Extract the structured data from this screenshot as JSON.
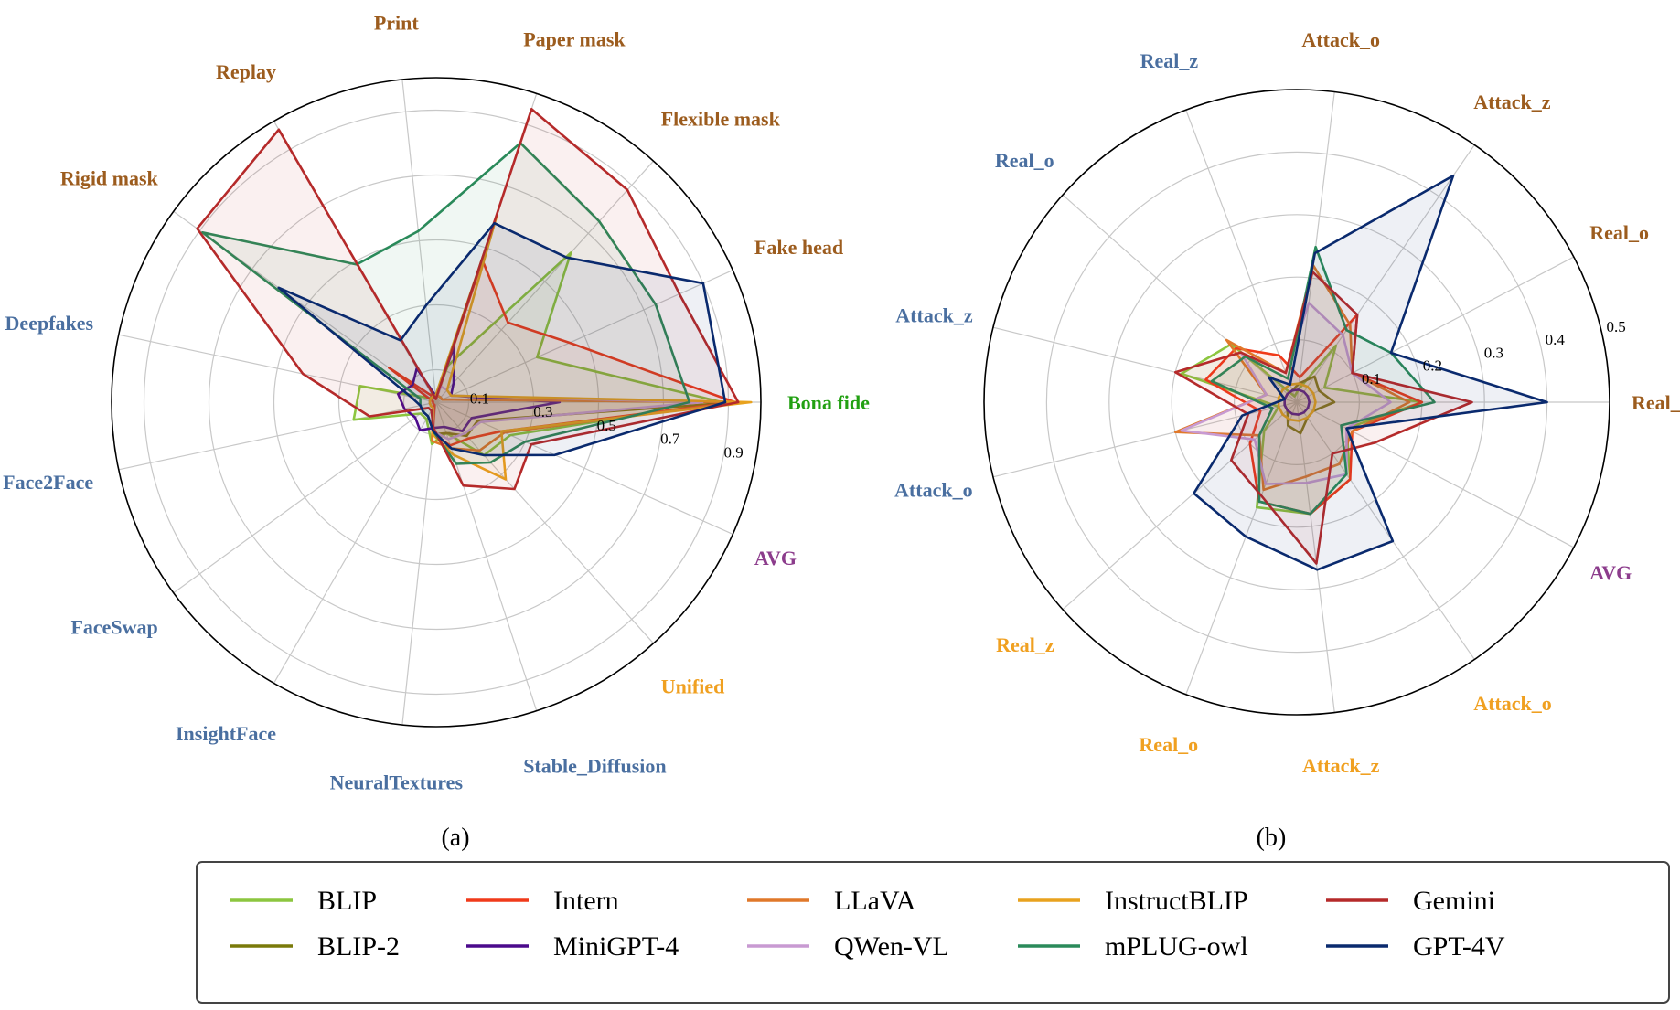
{
  "colors": {
    "BLIP": "#8cc63f",
    "BLIP-2": "#7a7a0a",
    "Intern": "#f03a1a",
    "MiniGPT-4": "#4b0a8c",
    "LLaVA": "#e0782a",
    "QWen-VL": "#c89ad2",
    "InstructBLIP": "#e8a21e",
    "mPLUG-owl": "#2a8a5a",
    "Gemini": "#b52a2a",
    "GPT-4V": "#0a2a6e",
    "label_brown": "#9c5c1e",
    "label_blue": "#4a6fa0",
    "label_green": "#22a012",
    "label_orange": "#f0a020",
    "label_purple": "#8c3c8c"
  },
  "legend": {
    "col1": [
      "BLIP",
      "BLIP-2"
    ],
    "col2": [
      "Intern",
      "MiniGPT-4"
    ],
    "col3": [
      "LLaVA",
      "QWen-VL"
    ],
    "col4": [
      "InstructBLIP",
      "mPLUG-owl"
    ],
    "col5": [
      "Gemini",
      "GPT-4V"
    ]
  },
  "chart_data": [
    {
      "type": "radar",
      "caption": "(a)",
      "rmax": 1.0,
      "start_angle_deg": 0,
      "ticks": [
        0.1,
        0.3,
        0.5,
        0.7,
        0.9
      ],
      "tick_labels": [
        "0.1",
        "0.3",
        "0.5",
        "0.7",
        "0.9"
      ],
      "axes": [
        {
          "label": "Bona fide",
          "color": "label_green"
        },
        {
          "label": "Fake head",
          "color": "label_brown"
        },
        {
          "label": "Flexible mask",
          "color": "label_brown"
        },
        {
          "label": "Paper mask",
          "color": "label_brown"
        },
        {
          "label": "Print",
          "color": "label_brown"
        },
        {
          "label": "Replay",
          "color": "label_brown"
        },
        {
          "label": "Rigid mask",
          "color": "label_brown"
        },
        {
          "label": "Deepfakes",
          "color": "label_blue"
        },
        {
          "label": "Face2Face",
          "color": "label_blue"
        },
        {
          "label": "FaceSwap",
          "color": "label_blue"
        },
        {
          "label": "InsightFace",
          "color": "label_blue"
        },
        {
          "label": "NeuralTextures",
          "color": "label_blue"
        },
        {
          "label": "Stable_Diffusion",
          "color": "label_blue"
        },
        {
          "label": "Unified",
          "color": "label_orange"
        },
        {
          "label": "AVG",
          "color": "label_purple"
        }
      ],
      "series": [
        {
          "name": "BLIP",
          "values": [
            0.88,
            0.34,
            0.62,
            0.12,
            0.02,
            0.03,
            0.02,
            0.24,
            0.26,
            0.06,
            0.06,
            0.13,
            0.1,
            0.22,
            0.25
          ]
        },
        {
          "name": "BLIP-2",
          "values": [
            0.93,
            0.02,
            0.02,
            0.02,
            0.02,
            0.02,
            0.02,
            0.02,
            0.02,
            0.02,
            0.02,
            0.1,
            0.1,
            0.14,
            0.14
          ]
        },
        {
          "name": "Intern",
          "values": [
            0.92,
            0.45,
            0.33,
            0.46,
            0.01,
            0.02,
            0.18,
            0.01,
            0.01,
            0.01,
            0.01,
            0.1,
            0.14,
            0.15,
            0.22
          ]
        },
        {
          "name": "MiniGPT-4",
          "values": [
            0.38,
            0.05,
            0.08,
            0.18,
            0.02,
            0.12,
            0.09,
            0.12,
            0.1,
            0.08,
            0.1,
            0.08,
            0.08,
            0.12,
            0.12
          ]
        },
        {
          "name": "LLaVA",
          "values": [
            0.93,
            0.02,
            0.02,
            0.02,
            0.02,
            0.02,
            0.02,
            0.02,
            0.02,
            0.02,
            0.02,
            0.12,
            0.15,
            0.2,
            0.23
          ]
        },
        {
          "name": "QWen-VL",
          "values": [
            0.82,
            0.05,
            0.05,
            0.05,
            0.02,
            0.02,
            0.02,
            0.02,
            0.02,
            0.02,
            0.02,
            0.09,
            0.12,
            0.13,
            0.15
          ]
        },
        {
          "name": "InstructBLIP",
          "values": [
            0.97,
            0.05,
            0.05,
            0.6,
            0.02,
            0.02,
            0.02,
            0.02,
            0.02,
            0.02,
            0.02,
            0.1,
            0.17,
            0.32,
            0.22
          ]
        },
        {
          "name": "mPLUG-owl",
          "values": [
            0.78,
            0.74,
            0.75,
            0.84,
            0.53,
            0.49,
            0.89,
            0.05,
            0.05,
            0.05,
            0.05,
            0.09,
            0.2,
            0.25,
            0.3
          ]
        },
        {
          "name": "Gemini",
          "values": [
            0.93,
            0.82,
            0.88,
            0.95,
            0.01,
            0.97,
            0.91,
            0.42,
            0.21,
            0.03,
            0.03,
            0.08,
            0.27,
            0.36,
            0.32
          ]
        },
        {
          "name": "GPT-4V",
          "values": [
            0.89,
            0.9,
            0.6,
            0.58,
            0.3,
            0.22,
            0.6,
            0.08,
            0.05,
            0.05,
            0.05,
            0.09,
            0.15,
            0.22,
            0.4
          ]
        }
      ]
    },
    {
      "type": "radar",
      "caption": "(b)",
      "rmax": 0.5,
      "start_angle_deg": 0,
      "ticks": [
        0.1,
        0.2,
        0.3,
        0.4,
        0.5
      ],
      "tick_labels": [
        "0.1",
        "0.2",
        "0.3",
        "0.4",
        "0.5"
      ],
      "axes": [
        {
          "label": "Real_z",
          "color": "label_brown"
        },
        {
          "label": "Real_o",
          "color": "label_brown"
        },
        {
          "label": "Attack_z",
          "color": "label_brown"
        },
        {
          "label": "Attack_o",
          "color": "label_brown"
        },
        {
          "label": "Real_z",
          "color": "label_blue"
        },
        {
          "label": "Real_o",
          "color": "label_blue"
        },
        {
          "label": "Attack_z",
          "color": "label_blue"
        },
        {
          "label": "Attack_o",
          "color": "label_blue"
        },
        {
          "label": "Real_z",
          "color": "label_orange"
        },
        {
          "label": "Real_o",
          "color": "label_orange"
        },
        {
          "label": "Attack_z",
          "color": "label_orange"
        },
        {
          "label": "Attack_o",
          "color": "label_orange"
        },
        {
          "label": "AVG",
          "color": "label_purple"
        }
      ],
      "series": [
        {
          "name": "BLIP",
          "values": [
            0.2,
            0.05,
            0.11,
            0.02,
            0.01,
            0.14,
            0.19,
            0.03,
            0.07,
            0.18,
            0.18,
            0.15,
            0.09
          ]
        },
        {
          "name": "BLIP-2",
          "values": [
            0.06,
            0.04,
            0.05,
            0.03,
            0.02,
            0.02,
            0.02,
            0.02,
            0.02,
            0.04,
            0.05,
            0.03,
            0.03
          ]
        },
        {
          "name": "Intern",
          "values": [
            0.2,
            0.1,
            0.17,
            0.04,
            0.08,
            0.13,
            0.15,
            0.06,
            0.1,
            0.17,
            0.18,
            0.15,
            0.1
          ]
        },
        {
          "name": "MiniGPT-4",
          "values": [
            0.02,
            0.02,
            0.02,
            0.02,
            0.02,
            0.02,
            0.02,
            0.02,
            0.02,
            0.02,
            0.02,
            0.02,
            0.02
          ]
        },
        {
          "name": "LLaVA",
          "values": [
            0.18,
            0.1,
            0.15,
            0.22,
            0.05,
            0.15,
            0.05,
            0.2,
            0.08,
            0.15,
            0.12,
            0.12,
            0.1
          ]
        },
        {
          "name": "QWen-VL",
          "values": [
            0.15,
            0.1,
            0.13,
            0.16,
            0.05,
            0.12,
            0.05,
            0.19,
            0.09,
            0.14,
            0.13,
            0.14,
            0.09
          ]
        },
        {
          "name": "InstructBLIP",
          "values": [
            0.03,
            0.03,
            0.03,
            0.03,
            0.03,
            0.03,
            0.03,
            0.03,
            0.03,
            0.03,
            0.03,
            0.03,
            0.03
          ]
        },
        {
          "name": "mPLUG-owl",
          "values": [
            0.22,
            0.17,
            0.14,
            0.25,
            0.04,
            0.11,
            0.14,
            0.04,
            0.08,
            0.17,
            0.18,
            0.14,
            0.08
          ]
        },
        {
          "name": "Gemini",
          "values": [
            0.28,
            0.1,
            0.17,
            0.21,
            0.05,
            0.12,
            0.2,
            0.08,
            0.14,
            0.16,
            0.26,
            0.1,
            0.14
          ]
        },
        {
          "name": "GPT-4V",
          "values": [
            0.4,
            0.17,
            0.44,
            0.24,
            0.03,
            0.06,
            0.02,
            0.09,
            0.22,
            0.23,
            0.27,
            0.27,
            0.09
          ]
        }
      ]
    }
  ]
}
